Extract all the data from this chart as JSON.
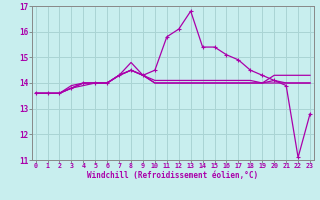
{
  "xlabel": "Windchill (Refroidissement éolien,°C)",
  "bg_color": "#c8eeee",
  "grid_color": "#aad4d4",
  "line_color": "#aa00aa",
  "x_hours": [
    0,
    1,
    2,
    3,
    4,
    5,
    6,
    7,
    8,
    9,
    10,
    11,
    12,
    13,
    14,
    15,
    16,
    17,
    18,
    19,
    20,
    21,
    22,
    23
  ],
  "series1": [
    13.6,
    13.6,
    13.6,
    13.8,
    13.9,
    14.0,
    14.0,
    14.3,
    14.5,
    14.3,
    14.0,
    14.0,
    14.0,
    14.0,
    14.0,
    14.0,
    14.0,
    14.0,
    14.0,
    14.0,
    14.0,
    14.0,
    14.0,
    14.0
  ],
  "series2": [
    13.6,
    13.6,
    13.6,
    13.9,
    14.0,
    14.0,
    14.0,
    14.3,
    14.5,
    14.3,
    14.1,
    14.1,
    14.1,
    14.1,
    14.1,
    14.1,
    14.1,
    14.1,
    14.1,
    14.0,
    14.1,
    14.0,
    14.0,
    14.0
  ],
  "series3": [
    13.6,
    13.6,
    13.6,
    13.8,
    14.0,
    14.0,
    14.0,
    14.3,
    14.8,
    14.3,
    14.0,
    14.0,
    14.0,
    14.0,
    14.0,
    14.0,
    14.0,
    14.0,
    14.0,
    14.0,
    14.3,
    14.3,
    14.3,
    14.3
  ],
  "series4_marked": [
    13.6,
    13.6,
    13.6,
    13.8,
    14.0,
    14.0,
    14.0,
    14.3,
    14.5,
    14.3,
    14.5,
    15.8,
    16.1,
    16.8,
    15.4,
    15.4,
    15.1,
    14.9,
    14.5,
    14.3,
    14.1,
    13.9,
    11.1,
    12.8
  ],
  "ylim": [
    11,
    17
  ],
  "yticks": [
    11,
    12,
    13,
    14,
    15,
    16,
    17
  ],
  "xticks": [
    0,
    1,
    2,
    3,
    4,
    5,
    6,
    7,
    8,
    9,
    10,
    11,
    12,
    13,
    14,
    15,
    16,
    17,
    18,
    19,
    20,
    21,
    22,
    23
  ],
  "xlim": [
    -0.3,
    23.3
  ]
}
